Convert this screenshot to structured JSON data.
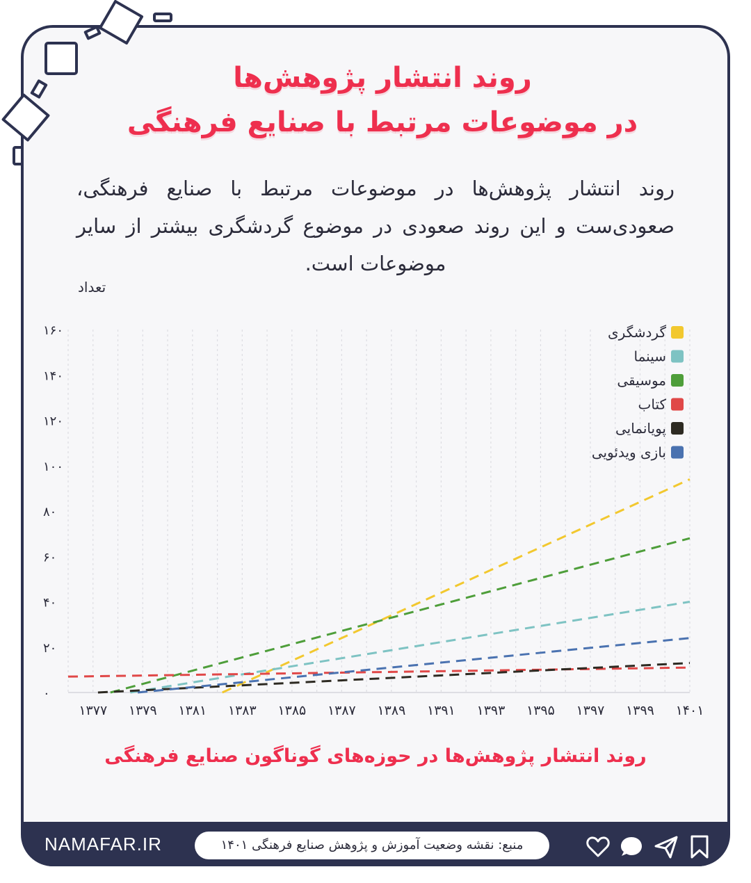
{
  "title": {
    "line1": "روند انتشار پژوهش‌ها",
    "line2": "در موضوعات مرتبط با صنایع فرهنگی"
  },
  "description": "روند انتشار پژوهش‌ها در موضوعات مرتبط با صنایع فرهنگی، صعودی‌ست و این روند صعودی در موضوع گردشگری بیشتر از سایر موضوعات است.",
  "chart_data": {
    "type": "line",
    "title": "روند انتشار پژوهش‌ها در حوزه‌های گوناگون صنایع فرهنگی",
    "ylabel": "تعداد",
    "xlabel": "",
    "ylim": [
      0,
      160
    ],
    "yticks": [
      "۰",
      "۲۰",
      "۴۰",
      "۶۰",
      "۸۰",
      "۱۰۰",
      "۱۲۰",
      "۱۴۰",
      "۱۶۰"
    ],
    "ytick_values": [
      0,
      20,
      40,
      60,
      80,
      100,
      120,
      140,
      160
    ],
    "xlim": [
      1376,
      1401
    ],
    "xticks": [
      "۱۳۷۷",
      "۱۳۷۹",
      "۱۳۸۱",
      "۱۳۸۳",
      "۱۳۸۵",
      "۱۳۸۷",
      "۱۳۸۹",
      "۱۳۹۱",
      "۱۳۹۳",
      "۱۳۹۵",
      "۱۳۹۷",
      "۱۳۹۹",
      "۱۴۰۱"
    ],
    "xtick_values": [
      1377,
      1379,
      1381,
      1383,
      1385,
      1387,
      1389,
      1391,
      1393,
      1395,
      1397,
      1399,
      1401
    ],
    "grid": "vertical",
    "legend_position": "top-right",
    "line_style": "dashed",
    "series": [
      {
        "name": "گردشگری",
        "color": "#f2c82f",
        "x": [
          1382.2,
          1401
        ],
        "y": [
          0,
          94
        ]
      },
      {
        "name": "سینما",
        "color": "#7ec3c3",
        "x": [
          1378.5,
          1401
        ],
        "y": [
          0,
          40
        ]
      },
      {
        "name": "موسیقی",
        "color": "#4e9e3a",
        "x": [
          1377.7,
          1401
        ],
        "y": [
          0,
          68
        ]
      },
      {
        "name": "کتاب",
        "color": "#e04848",
        "x": [
          1376,
          1401
        ],
        "y": [
          7,
          11
        ]
      },
      {
        "name": "پویانمایی",
        "color": "#2d2a22",
        "x": [
          1377.2,
          1401
        ],
        "y": [
          0,
          13
        ]
      },
      {
        "name": "بازی ویدئویی",
        "color": "#4a72b0",
        "x": [
          1378.8,
          1401
        ],
        "y": [
          0,
          24
        ]
      }
    ]
  },
  "footer": {
    "brand": "NAMAFAR.IR",
    "source": "منبع: نقشه وضعیت آموزش و پژوهش صنایع فرهنگی ۱۴۰۱"
  },
  "icons": [
    "heart-icon",
    "comment-icon",
    "send-icon",
    "bookmark-icon"
  ]
}
